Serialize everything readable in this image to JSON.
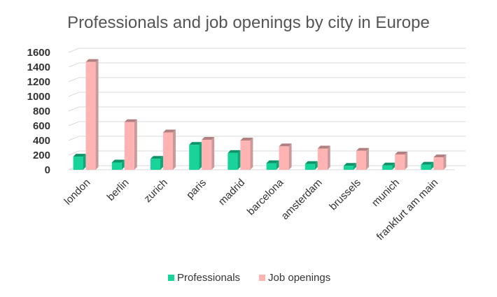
{
  "chart_data": {
    "type": "bar",
    "title": "Professionals and job openings by city in Europe",
    "categories": [
      "london",
      "berlin",
      "zurich",
      "paris",
      "madrid",
      "barcelona",
      "amsterdam",
      "brussels",
      "munich",
      "frankfurt am main"
    ],
    "series": [
      {
        "name": "Professionals",
        "values": [
          180,
          100,
          150,
          340,
          230,
          90,
          80,
          55,
          60,
          70
        ],
        "color": "#18d49a",
        "side_color": "#0ea879",
        "top_color": "#0c9468"
      },
      {
        "name": "Job openings",
        "values": [
          1470,
          650,
          510,
          410,
          400,
          320,
          290,
          260,
          210,
          170
        ],
        "color": "#ffb3b3",
        "side_color": "#c99a9a",
        "top_color": "#b07f7f"
      }
    ],
    "ylim": [
      0,
      1600
    ],
    "yticks": [
      0,
      200,
      400,
      600,
      800,
      1000,
      1200,
      1400,
      1600
    ],
    "grid": true,
    "legend_position": "bottom"
  }
}
